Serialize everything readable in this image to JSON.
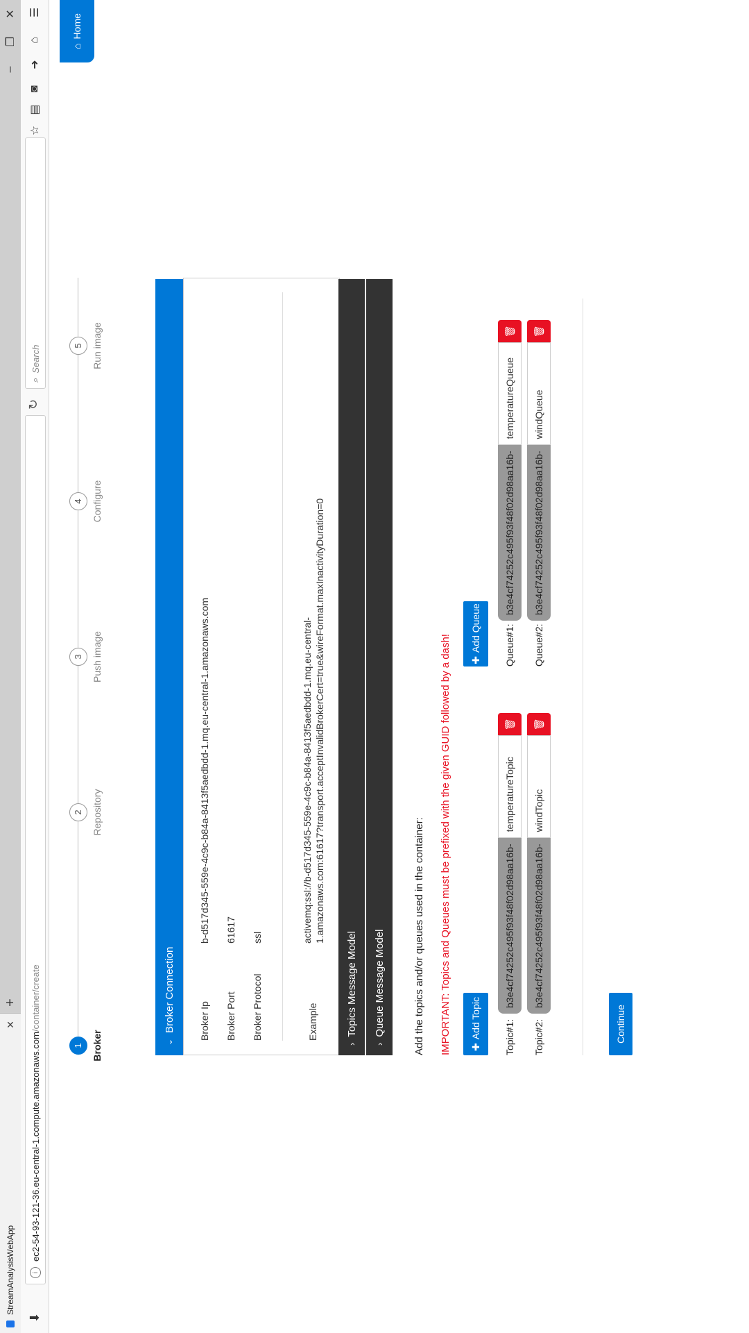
{
  "browser": {
    "tab_title": "StreamAnalysisWebApp",
    "url_host": "ec2-54-93-121-36.eu-central-1.compute.amazonaws.com",
    "url_path": "/container/create",
    "search_placeholder": "Search"
  },
  "nav": {
    "home_label": "Home"
  },
  "stepper": {
    "steps": [
      {
        "num": "1",
        "label": "Broker"
      },
      {
        "num": "2",
        "label": "Repository"
      },
      {
        "num": "3",
        "label": "Push image"
      },
      {
        "num": "4",
        "label": "Configure"
      },
      {
        "num": "5",
        "label": "Run image"
      }
    ]
  },
  "broker_connection": {
    "title": "Broker Connection",
    "ip_label": "Broker Ip",
    "ip_value": "b-d517d345-559e-4c9c-b84a-8413f5aedbdd-1.mq.eu-central-1.amazonaws.com",
    "port_label": "Broker Port",
    "port_value": "61617",
    "protocol_label": "Broker Protocol",
    "protocol_value": "ssl",
    "example_label": "Example",
    "example_line1": "activemq:ssl://b-d517d345-559e-4c9c-b84a-8413f5aedbdd-1.mq.eu-central-",
    "example_line2": "1.amazonaws.com:61617?transport.acceptInvalidBrokerCert=true&wireFormat.maxInactivityDuration=0"
  },
  "topics_model": {
    "title": "Topics Message Model"
  },
  "queue_model": {
    "title": "Queue Message Model"
  },
  "form": {
    "instruction": "Add the topics and/or queues used in the container:",
    "important": "IMPORTANT: Topics and Queues must be prefixed with the given GUID followed by a dash!",
    "add_topic": "Add Topic",
    "add_queue": "Add Queue",
    "guid_prefix": "b3e4cf74252c495f93f48f02d98aa16b-",
    "topics": [
      {
        "label": "Topic#1:",
        "value": "temperatureTopic"
      },
      {
        "label": "Topic#2:",
        "value": "windTopic"
      }
    ],
    "queues": [
      {
        "label": "Queue#1:",
        "value": "temperatureQueue"
      },
      {
        "label": "Queue#2:",
        "value": "windQueue"
      }
    ],
    "continue": "Continue"
  }
}
